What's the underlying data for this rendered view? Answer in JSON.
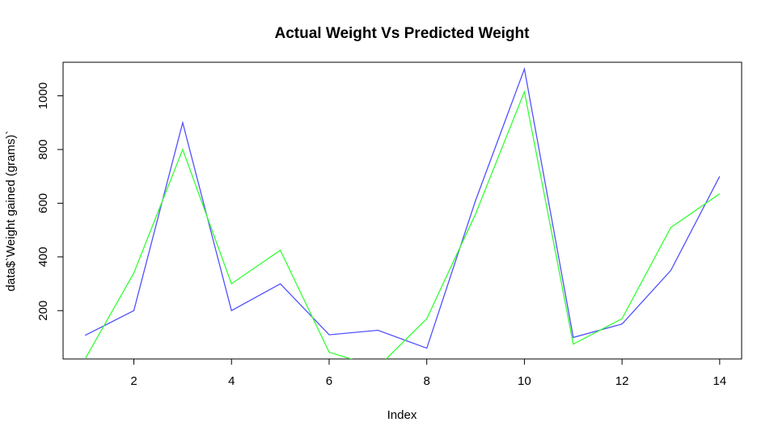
{
  "chart_data": {
    "type": "line",
    "title": "Actual Weight Vs Predicted Weight",
    "xlabel": "Index",
    "ylabel": "data$`Weight gained (grams)`",
    "xlim": [
      0.55,
      14.45
    ],
    "ylim": [
      20,
      1125
    ],
    "x_ticks": [
      2,
      4,
      6,
      8,
      10,
      12,
      14
    ],
    "y_ticks": [
      200,
      400,
      600,
      800,
      1000
    ],
    "grid": false,
    "legend": "none",
    "x": [
      1,
      2,
      3,
      4,
      5,
      6,
      7,
      8,
      9,
      10,
      11,
      12,
      13,
      14
    ],
    "series": [
      {
        "color": "#5050ff",
        "values": [
          108,
          200,
          900,
          200,
          300,
          110,
          127,
          60,
          610,
          1100,
          100,
          150,
          350,
          700
        ]
      },
      {
        "color": "#33ff33",
        "values": [
          20,
          340,
          800,
          300,
          425,
          45,
          -10,
          170,
          560,
          1015,
          75,
          170,
          510,
          635
        ]
      }
    ]
  }
}
